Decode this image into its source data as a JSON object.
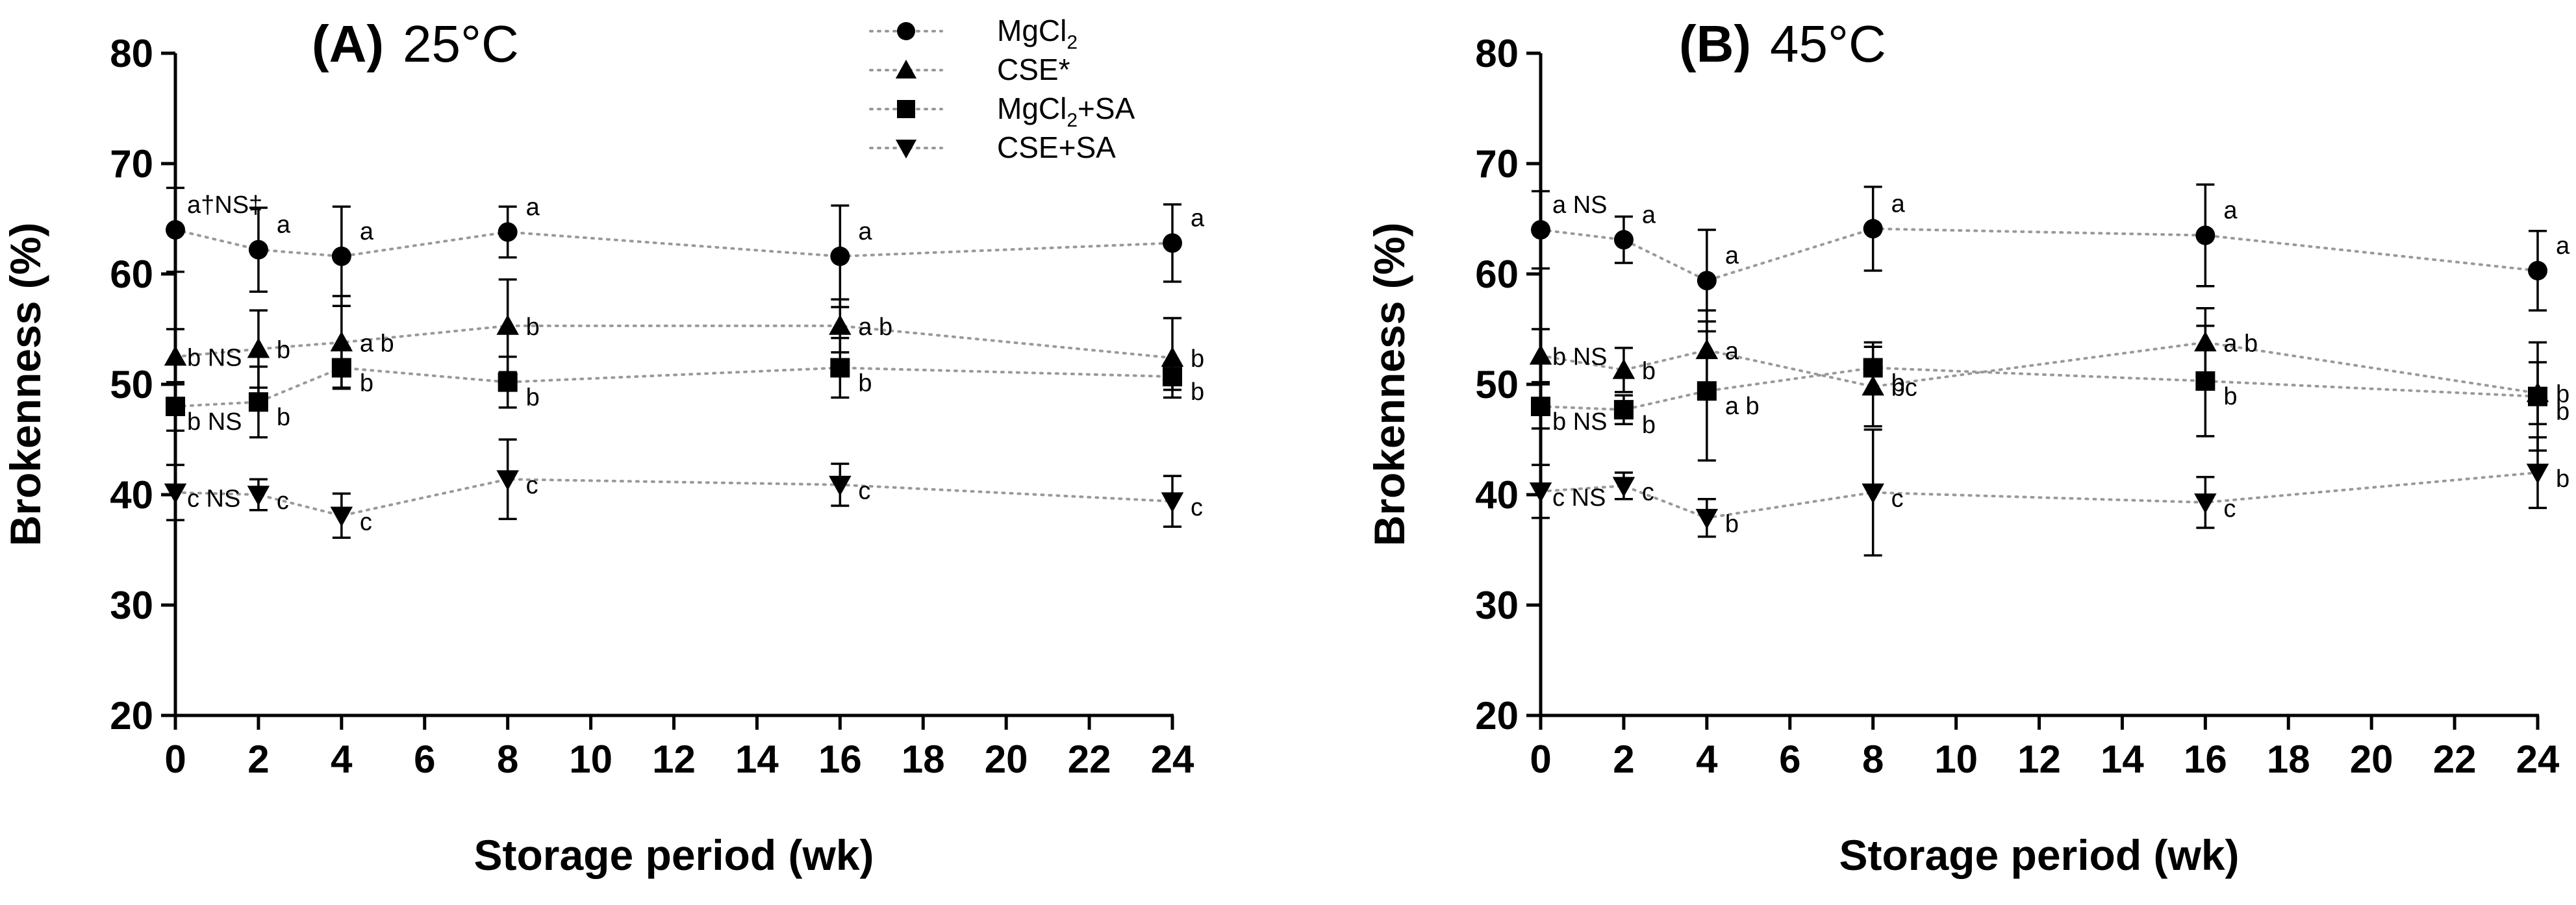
{
  "chart_data": [
    {
      "type": "scatter",
      "panel_label": "(A)",
      "condition": "25°C",
      "xlabel": "Storage period (wk)",
      "ylabel": "Brokenness (%)",
      "xlim": [
        0,
        24
      ],
      "ylim": [
        20,
        80
      ],
      "xticks": [
        "0",
        "2",
        "4",
        "6",
        "8",
        "10",
        "12",
        "14",
        "16",
        "18",
        "20",
        "22",
        "24"
      ],
      "yticks": [
        "20",
        "30",
        "40",
        "50",
        "60",
        "70",
        "80"
      ],
      "x": [
        0,
        2,
        4,
        8,
        16,
        24
      ],
      "series": [
        {
          "name": "MgCl2",
          "marker": "circle",
          "values": [
            64.0,
            62.2,
            61.6,
            63.8,
            61.6,
            62.8
          ],
          "errors": [
            3.8,
            3.8,
            4.5,
            2.3,
            4.6,
            3.5
          ],
          "annotations": [
            {
              "x": 0,
              "text": "a†NS‡"
            },
            {
              "x": 2,
              "text": "a"
            },
            {
              "x": 4,
              "text": "a"
            },
            {
              "x": 8,
              "text": "a"
            },
            {
              "x": 16,
              "text": "a"
            },
            {
              "x": 24,
              "text": "a"
            }
          ]
        },
        {
          "name": "CSE*",
          "marker": "triangle-up",
          "values": [
            52.5,
            53.2,
            53.8,
            55.3,
            55.3,
            52.4
          ],
          "errors": [
            2.5,
            3.5,
            4.2,
            4.2,
            2.4,
            3.6
          ],
          "annotations": [
            {
              "x": 0,
              "text": "b NS"
            },
            {
              "x": 2,
              "text": "b"
            },
            {
              "x": 4,
              "text": "a b"
            },
            {
              "x": 8,
              "text": "b"
            },
            {
              "x": 16,
              "text": "a b"
            },
            {
              "x": 24,
              "text": "b"
            }
          ]
        },
        {
          "name": "MgCl2+SA",
          "marker": "square",
          "values": [
            48.0,
            48.4,
            51.5,
            50.2,
            51.5,
            50.7
          ],
          "errors": [
            2.2,
            3.2,
            1.8,
            2.3,
            2.7,
            1.2
          ],
          "annotations": [
            {
              "x": 0,
              "text": "b NS"
            },
            {
              "x": 2,
              "text": "b"
            },
            {
              "x": 4,
              "text": "b"
            },
            {
              "x": 8,
              "text": "b"
            },
            {
              "x": 16,
              "text": "b"
            },
            {
              "x": 24,
              "text": "b"
            }
          ]
        },
        {
          "name": "CSE+SA",
          "marker": "triangle-down",
          "values": [
            40.2,
            40.0,
            38.1,
            41.4,
            40.9,
            39.4
          ],
          "errors": [
            2.5,
            1.4,
            2.0,
            3.6,
            1.9,
            2.3
          ],
          "annotations": [
            {
              "x": 0,
              "text": "c NS"
            },
            {
              "x": 2,
              "text": "c"
            },
            {
              "x": 4,
              "text": "c"
            },
            {
              "x": 8,
              "text": "c"
            },
            {
              "x": 16,
              "text": "c"
            },
            {
              "x": 24,
              "text": "c"
            }
          ]
        }
      ]
    },
    {
      "type": "scatter",
      "panel_label": "(B)",
      "condition": "45°C",
      "xlabel": "Storage period (wk)",
      "ylabel": "Brokenness (%)",
      "xlim": [
        0,
        24
      ],
      "ylim": [
        20,
        80
      ],
      "xticks": [
        "0",
        "2",
        "4",
        "6",
        "8",
        "10",
        "12",
        "14",
        "16",
        "18",
        "20",
        "22",
        "24"
      ],
      "yticks": [
        "20",
        "30",
        "40",
        "50",
        "60",
        "70",
        "80"
      ],
      "x": [
        0,
        2,
        4,
        8,
        16,
        24
      ],
      "series": [
        {
          "name": "MgCl2",
          "marker": "circle",
          "values": [
            64.0,
            63.1,
            59.4,
            64.1,
            63.5,
            60.3
          ],
          "errors": [
            3.5,
            2.1,
            4.6,
            3.8,
            4.6,
            3.6
          ],
          "annotations": [
            {
              "x": 0,
              "text": "a NS"
            },
            {
              "x": 2,
              "text": "a"
            },
            {
              "x": 4,
              "text": "a"
            },
            {
              "x": 8,
              "text": "a"
            },
            {
              "x": 16,
              "text": "a"
            },
            {
              "x": 24,
              "text": "a"
            }
          ]
        },
        {
          "name": "CSE*",
          "marker": "triangle-up",
          "values": [
            52.6,
            51.3,
            53.1,
            49.8,
            53.8,
            49.2
          ],
          "errors": [
            2.4,
            2.0,
            3.6,
            3.6,
            3.1,
            2.8
          ],
          "annotations": [
            {
              "x": 0,
              "text": "b NS"
            },
            {
              "x": 2,
              "text": "b"
            },
            {
              "x": 4,
              "text": "a"
            },
            {
              "x": 8,
              "text": "bc"
            },
            {
              "x": 16,
              "text": "a b"
            },
            {
              "x": 24,
              "text": "b"
            }
          ]
        },
        {
          "name": "MgCl2+SA",
          "marker": "square",
          "values": [
            48.0,
            47.7,
            49.4,
            51.5,
            50.3,
            48.9
          ],
          "errors": [
            2.0,
            1.3,
            6.3,
            2.3,
            5.0,
            4.9
          ],
          "annotations": [
            {
              "x": 0,
              "text": "b NS"
            },
            {
              "x": 2,
              "text": "b"
            },
            {
              "x": 4,
              "text": "a b"
            },
            {
              "x": 8,
              "text": "b"
            },
            {
              "x": 16,
              "text": "b"
            },
            {
              "x": 24,
              "text": "b"
            }
          ]
        },
        {
          "name": "CSE+SA",
          "marker": "triangle-down",
          "values": [
            40.3,
            40.8,
            37.9,
            40.2,
            39.3,
            42.0
          ],
          "errors": [
            2.4,
            1.2,
            1.7,
            5.7,
            2.3,
            3.2
          ],
          "annotations": [
            {
              "x": 0,
              "text": "c NS"
            },
            {
              "x": 2,
              "text": "c"
            },
            {
              "x": 4,
              "text": "b"
            },
            {
              "x": 8,
              "text": "c"
            },
            {
              "x": 16,
              "text": "c"
            },
            {
              "x": 24,
              "text": "b"
            }
          ]
        }
      ]
    }
  ],
  "legend": {
    "location": "top-center",
    "items": [
      {
        "marker": "circle",
        "label_main": "MgCl",
        "label_sub": "2",
        "label_tail": ""
      },
      {
        "marker": "triangle-up",
        "label_main": "CSE*",
        "label_sub": "",
        "label_tail": ""
      },
      {
        "marker": "square",
        "label_main": "MgCl",
        "label_sub": "2",
        "label_tail": "+SA"
      },
      {
        "marker": "triangle-down",
        "label_main": "CSE+SA",
        "label_sub": "",
        "label_tail": ""
      }
    ]
  }
}
